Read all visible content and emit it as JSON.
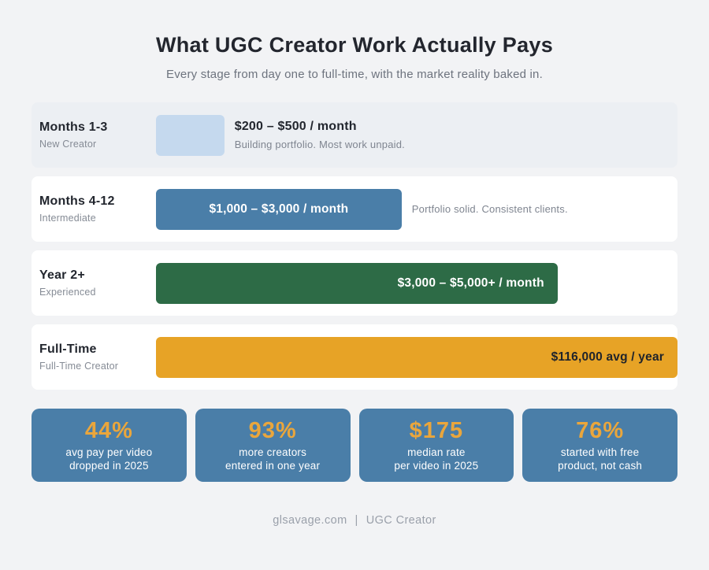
{
  "header": {
    "title": "What UGC Creator Work Actually Pays",
    "subtitle": "Every stage from day one to full-time, with the market reality baked in."
  },
  "rows": [
    {
      "stage": "Months 1-3",
      "level": "New Creator",
      "value": "$200 – $500 / month",
      "note": "Building portfolio. Most work unpaid.",
      "bar": {
        "width_pct": 13.1,
        "color": "#c5d9ee",
        "text_inside": false
      }
    },
    {
      "stage": "Months 4-12",
      "level": "Intermediate",
      "value": "$1,000 – $3,000 / month",
      "note": "Portfolio solid. Consistent clients.",
      "bar": {
        "width_pct": 47.1,
        "color": "#4a7ea8",
        "text_inside": true,
        "text_color": "#ffffff",
        "align": "center"
      }
    },
    {
      "stage": "Year 2+",
      "level": "Experienced",
      "value": "$3,000 – $5,000+ / month",
      "note": "",
      "bar": {
        "width_pct": 77,
        "color": "#2d6b46",
        "text_inside": true,
        "text_color": "#ffffff",
        "align": "right"
      }
    },
    {
      "stage": "Full-Time",
      "level": "Full-Time Creator",
      "value": "$116,000 avg / year",
      "note": "",
      "bar": {
        "width_pct": 100,
        "color": "#e7a326",
        "text_inside": true,
        "text_color": "#20242b",
        "align": "right"
      }
    }
  ],
  "stats": [
    {
      "number": "44%",
      "line1": "avg pay per video",
      "line2": "dropped in 2025"
    },
    {
      "number": "93%",
      "line1": "more creators",
      "line2": "entered in one year"
    },
    {
      "number": "$175",
      "line1": "median rate",
      "line2": "per video in 2025"
    },
    {
      "number": "76%",
      "line1": "started with free",
      "line2": "product, not cash"
    }
  ],
  "footer": {
    "site": "glsavage.com",
    "divider": "|",
    "tag": "UGC Creator"
  },
  "colors": {
    "page_bg": "#f2f3f5",
    "tinted_row_bg": "#eceff3",
    "card_bg": "#ffffff",
    "stat_bg": "#4a7ea8",
    "accent_orange": "#e9a63a",
    "accent_green": "#2d6b46",
    "accent_blue": "#4a7ea8",
    "accent_lightblue": "#c5d9ee",
    "dark_text": "#22262e",
    "gray_text": "#7f8590"
  },
  "chart_data": {
    "type": "bar",
    "orientation": "horizontal",
    "title": "What UGC Creator Work Actually Pays",
    "subtitle": "Every stage from day one to full-time, with the market reality baked in.",
    "categories": [
      "Months 1-3 (New Creator)",
      "Months 4-12 (Intermediate)",
      "Year 2+ (Experienced)",
      "Full-Time (Full-Time Creator)"
    ],
    "series": [
      {
        "name": "Pay by stage",
        "value_labels": [
          "$200 – $500 / month",
          "$1,000 – $3,000 / month",
          "$3,000 – $5,000+ / month",
          "$116,000 avg / year"
        ],
        "bar_lengths_pct_of_track": [
          13.1,
          47.1,
          77,
          100
        ]
      }
    ],
    "annotations": [
      "Building portfolio. Most work unpaid.",
      "Portfolio solid. Consistent clients."
    ],
    "bar_colors": [
      "#c5d9ee",
      "#4a7ea8",
      "#2d6b46",
      "#e7a326"
    ],
    "stats": [
      {
        "value": "44%",
        "label": "avg pay per video dropped in 2025"
      },
      {
        "value": "93%",
        "label": "more creators entered in one year"
      },
      {
        "value": "$175",
        "label": "median rate per video in 2025"
      },
      {
        "value": "76%",
        "label": "started with free product, not cash"
      }
    ],
    "legend": false,
    "grid": false
  }
}
